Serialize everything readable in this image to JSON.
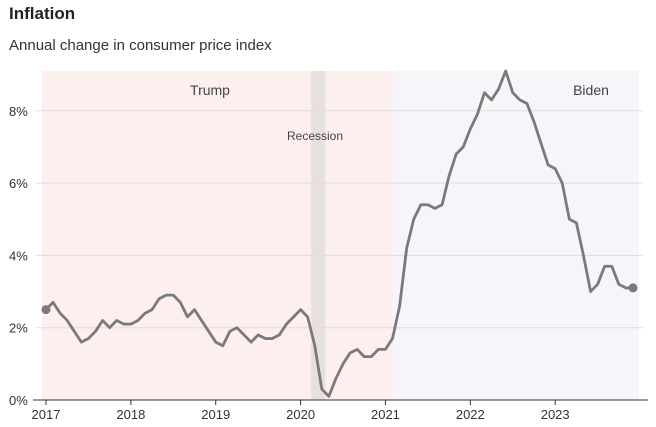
{
  "title": "Inflation",
  "subtitle": "Annual change in consumer price index",
  "chart_data": {
    "type": "line",
    "title": "Inflation",
    "subtitle": "Annual change in consumer price index",
    "xlabel": "",
    "ylabel": "",
    "y_unit": "%",
    "ylim": [
      0,
      9.1
    ],
    "xlim": [
      2017.0,
      2023.917
    ],
    "yticks": [
      0,
      2,
      4,
      6,
      8
    ],
    "ytick_labels": [
      "0%",
      "2%",
      "4%",
      "6%",
      "8%"
    ],
    "xticks": [
      2017,
      2018,
      2019,
      2020,
      2021,
      2022,
      2023
    ],
    "xtick_labels": [
      "2017",
      "2018",
      "2019",
      "2020",
      "2021",
      "2022",
      "2023"
    ],
    "grid": true,
    "colors": {
      "line": "#7a7a7a",
      "trump_band": "#fcefed",
      "biden_band": "#f6f6fa",
      "recession_band": "#e8e0df",
      "grid": "#dddddd",
      "axis": "#333333"
    },
    "regions": [
      {
        "name": "Trump",
        "start": 2017.0,
        "end": 2021.083
      },
      {
        "name": "Biden",
        "start": 2021.083,
        "end": 2023.917
      }
    ],
    "shaded_periods": [
      {
        "name": "Recession",
        "start": 2020.125,
        "end": 2020.292
      }
    ],
    "series": [
      {
        "name": "CPI annual change",
        "x": [
          2017.0,
          2017.083,
          2017.167,
          2017.25,
          2017.333,
          2017.417,
          2017.5,
          2017.583,
          2017.667,
          2017.75,
          2017.833,
          2017.917,
          2018.0,
          2018.083,
          2018.167,
          2018.25,
          2018.333,
          2018.417,
          2018.5,
          2018.583,
          2018.667,
          2018.75,
          2018.833,
          2018.917,
          2019.0,
          2019.083,
          2019.167,
          2019.25,
          2019.333,
          2019.417,
          2019.5,
          2019.583,
          2019.667,
          2019.75,
          2019.833,
          2019.917,
          2020.0,
          2020.083,
          2020.167,
          2020.25,
          2020.333,
          2020.417,
          2020.5,
          2020.583,
          2020.667,
          2020.75,
          2020.833,
          2020.917,
          2021.0,
          2021.083,
          2021.167,
          2021.25,
          2021.333,
          2021.417,
          2021.5,
          2021.583,
          2021.667,
          2021.75,
          2021.833,
          2021.917,
          2022.0,
          2022.083,
          2022.167,
          2022.25,
          2022.333,
          2022.417,
          2022.5,
          2022.583,
          2022.667,
          2022.75,
          2022.833,
          2022.917,
          2023.0,
          2023.083,
          2023.167,
          2023.25,
          2023.333,
          2023.417,
          2023.5,
          2023.583,
          2023.667,
          2023.75,
          2023.833,
          2023.917
        ],
        "values": [
          2.5,
          2.7,
          2.4,
          2.2,
          1.9,
          1.6,
          1.7,
          1.9,
          2.2,
          2.0,
          2.2,
          2.1,
          2.1,
          2.2,
          2.4,
          2.5,
          2.8,
          2.9,
          2.9,
          2.7,
          2.3,
          2.5,
          2.2,
          1.9,
          1.6,
          1.5,
          1.9,
          2.0,
          1.8,
          1.6,
          1.8,
          1.7,
          1.7,
          1.8,
          2.1,
          2.3,
          2.5,
          2.3,
          1.5,
          0.3,
          0.1,
          0.6,
          1.0,
          1.3,
          1.4,
          1.2,
          1.2,
          1.4,
          1.4,
          1.7,
          2.6,
          4.2,
          5.0,
          5.4,
          5.4,
          5.3,
          5.4,
          6.2,
          6.8,
          7.0,
          7.5,
          7.9,
          8.5,
          8.3,
          8.6,
          9.1,
          8.5,
          8.3,
          8.2,
          7.7,
          7.1,
          6.5,
          6.4,
          6.0,
          5.0,
          4.9,
          4.0,
          3.0,
          3.2,
          3.7,
          3.7,
          3.2,
          3.1,
          3.1
        ]
      }
    ],
    "highlight_points": [
      {
        "x": 2017.0,
        "y": 2.5
      },
      {
        "x": 2023.917,
        "y": 3.1
      }
    ]
  }
}
